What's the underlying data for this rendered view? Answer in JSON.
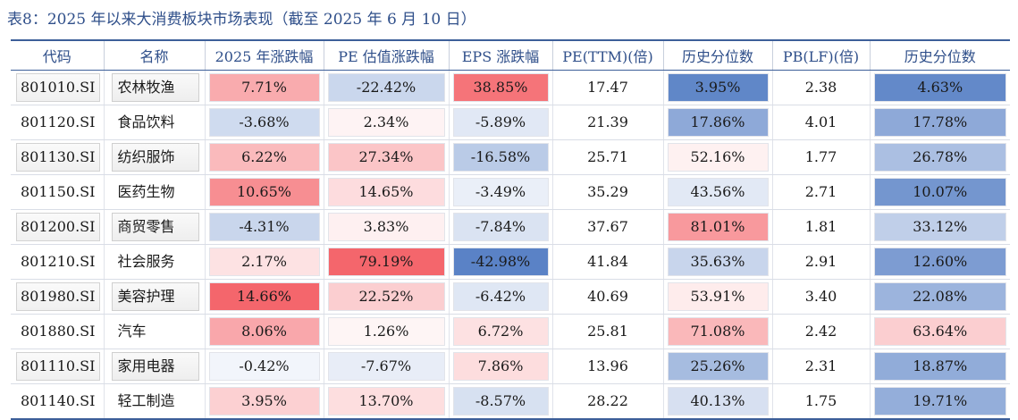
{
  "caption": "表8：2025 年以来大消费板块市场表现（截至 2025 年 6 月 10 日）",
  "colors": {
    "title": "#2f4f8a",
    "rule": "#3d5f99"
  },
  "headers": [
    "代码",
    "名称",
    "2025 年涨跌幅",
    "PE 估值涨跌幅",
    "EPS 涨跌幅",
    "PE(TTM)(倍)",
    "历史分位数",
    "PB(LF)(倍)",
    "历史分位数"
  ],
  "rows": [
    {
      "code": "801010.SI",
      "name": "农林牧渔",
      "ytd": "7.71%",
      "pe_chg": "-22.42%",
      "eps_chg": "38.85%",
      "pe_ttm": "17.47",
      "pe_pct": "3.95%",
      "pb": "2.38",
      "pb_pct": "4.63%"
    },
    {
      "code": "801120.SI",
      "name": "食品饮料",
      "ytd": "-3.68%",
      "pe_chg": "2.34%",
      "eps_chg": "-5.89%",
      "pe_ttm": "21.39",
      "pe_pct": "17.86%",
      "pb": "4.01",
      "pb_pct": "17.78%"
    },
    {
      "code": "801130.SI",
      "name": "纺织服饰",
      "ytd": "6.22%",
      "pe_chg": "27.34%",
      "eps_chg": "-16.58%",
      "pe_ttm": "25.71",
      "pe_pct": "52.16%",
      "pb": "1.77",
      "pb_pct": "26.78%"
    },
    {
      "code": "801150.SI",
      "name": "医药生物",
      "ytd": "10.65%",
      "pe_chg": "14.65%",
      "eps_chg": "-3.49%",
      "pe_ttm": "35.29",
      "pe_pct": "43.56%",
      "pb": "2.71",
      "pb_pct": "10.07%"
    },
    {
      "code": "801200.SI",
      "name": "商贸零售",
      "ytd": "-4.31%",
      "pe_chg": "3.83%",
      "eps_chg": "-7.84%",
      "pe_ttm": "37.67",
      "pe_pct": "81.01%",
      "pb": "1.81",
      "pb_pct": "33.12%"
    },
    {
      "code": "801210.SI",
      "name": "社会服务",
      "ytd": "2.17%",
      "pe_chg": "79.19%",
      "eps_chg": "-42.98%",
      "pe_ttm": "41.84",
      "pe_pct": "35.63%",
      "pb": "2.91",
      "pb_pct": "12.60%"
    },
    {
      "code": "801980.SI",
      "name": "美容护理",
      "ytd": "14.66%",
      "pe_chg": "22.52%",
      "eps_chg": "-6.42%",
      "pe_ttm": "40.69",
      "pe_pct": "53.91%",
      "pb": "3.40",
      "pb_pct": "22.08%"
    },
    {
      "code": "801880.SI",
      "name": "汽车",
      "ytd": "8.06%",
      "pe_chg": "1.26%",
      "eps_chg": "6.72%",
      "pe_ttm": "25.81",
      "pe_pct": "71.08%",
      "pb": "2.42",
      "pb_pct": "63.64%"
    },
    {
      "code": "801110.SI",
      "name": "家用电器",
      "ytd": "-0.42%",
      "pe_chg": "-7.67%",
      "eps_chg": "7.86%",
      "pe_ttm": "13.96",
      "pe_pct": "25.26%",
      "pb": "2.31",
      "pb_pct": "18.87%"
    },
    {
      "code": "801140.SI",
      "name": "轻工制造",
      "ytd": "3.95%",
      "pe_chg": "13.70%",
      "eps_chg": "-8.57%",
      "pe_ttm": "28.22",
      "pe_pct": "40.13%",
      "pb": "1.75",
      "pb_pct": "19.71%"
    }
  ]
}
